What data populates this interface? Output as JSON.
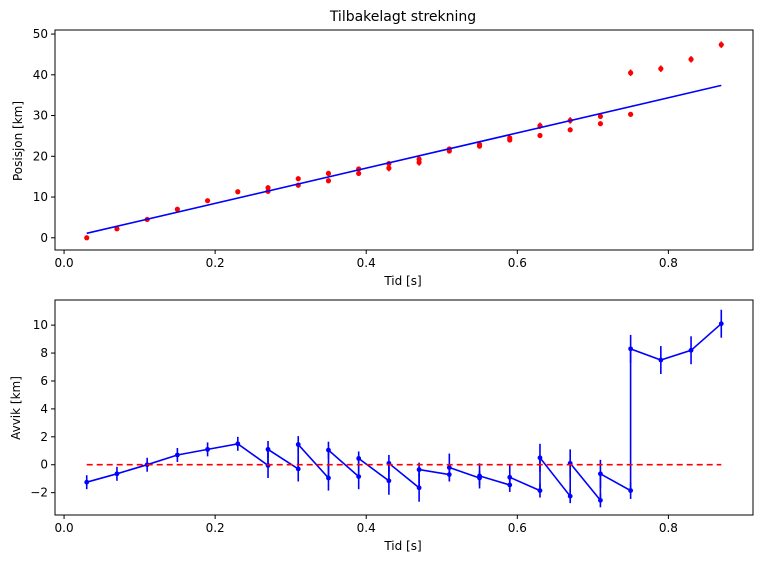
{
  "chart_data": [
    {
      "type": "scatter",
      "title": "Tilbakelagt strekning",
      "xlabel": "Tid [s]",
      "ylabel": "Posisjon [km]",
      "xlim": [
        -0.012,
        0.912
      ],
      "ylim": [
        -3.0,
        51.0
      ],
      "xticks": [
        0.0,
        0.2,
        0.4,
        0.6,
        0.8
      ],
      "xtick_labels": [
        "0.0",
        "0.2",
        "0.4",
        "0.6",
        "0.8"
      ],
      "yticks": [
        0,
        10,
        20,
        30,
        40,
        50
      ],
      "ytick_labels": [
        "0",
        "10",
        "20",
        "30",
        "40",
        "50"
      ],
      "grid": false,
      "series": [
        {
          "kind": "points",
          "color": "#ff0000",
          "points": [
            {
              "x": 0.03,
              "y": 0.0,
              "err": 0.4
            },
            {
              "x": 0.07,
              "y": 2.2,
              "err": 0.4
            },
            {
              "x": 0.11,
              "y": 4.5,
              "err": 0.4
            },
            {
              "x": 0.15,
              "y": 7.0,
              "err": 0.4
            },
            {
              "x": 0.19,
              "y": 9.1,
              "err": 0.4
            },
            {
              "x": 0.23,
              "y": 11.3,
              "err": 0.4
            },
            {
              "x": 0.27,
              "y": 11.4,
              "err": 0.6
            },
            {
              "x": 0.27,
              "y": 12.3,
              "err": 0.6
            },
            {
              "x": 0.31,
              "y": 12.9,
              "err": 0.6
            },
            {
              "x": 0.31,
              "y": 14.5,
              "err": 0.6
            },
            {
              "x": 0.35,
              "y": 14.0,
              "err": 0.6
            },
            {
              "x": 0.35,
              "y": 15.8,
              "err": 0.6
            },
            {
              "x": 0.39,
              "y": 15.8,
              "err": 0.6
            },
            {
              "x": 0.39,
              "y": 16.9,
              "err": 0.6
            },
            {
              "x": 0.43,
              "y": 17.1,
              "err": 0.8
            },
            {
              "x": 0.43,
              "y": 18.2,
              "err": 0.6
            },
            {
              "x": 0.47,
              "y": 18.5,
              "err": 0.8
            },
            {
              "x": 0.47,
              "y": 19.3,
              "err": 0.6
            },
            {
              "x": 0.51,
              "y": 21.3,
              "err": 0.6
            },
            {
              "x": 0.51,
              "y": 21.8,
              "err": 0.6
            },
            {
              "x": 0.55,
              "y": 22.5,
              "err": 0.6
            },
            {
              "x": 0.55,
              "y": 22.9,
              "err": 0.6
            },
            {
              "x": 0.59,
              "y": 24.0,
              "err": 0.6
            },
            {
              "x": 0.59,
              "y": 24.5,
              "err": 0.6
            },
            {
              "x": 0.63,
              "y": 25.1,
              "err": 0.6
            },
            {
              "x": 0.63,
              "y": 27.5,
              "err": 0.8
            },
            {
              "x": 0.67,
              "y": 26.5,
              "err": 0.6
            },
            {
              "x": 0.67,
              "y": 28.8,
              "err": 0.8
            },
            {
              "x": 0.71,
              "y": 28.0,
              "err": 0.6
            },
            {
              "x": 0.71,
              "y": 29.8,
              "err": 0.6
            },
            {
              "x": 0.75,
              "y": 30.3,
              "err": 0.6
            },
            {
              "x": 0.75,
              "y": 40.5,
              "err": 0.8
            },
            {
              "x": 0.79,
              "y": 41.5,
              "err": 0.8
            },
            {
              "x": 0.83,
              "y": 43.8,
              "err": 0.8
            },
            {
              "x": 0.87,
              "y": 47.4,
              "err": 0.8
            }
          ]
        },
        {
          "kind": "line",
          "color": "#0000ff",
          "x": [
            0.03,
            0.87
          ],
          "y": [
            1.1,
            37.4
          ]
        }
      ]
    },
    {
      "type": "line",
      "title": "",
      "xlabel": "Tid [s]",
      "ylabel": "Avvik [km]",
      "xlim": [
        -0.012,
        0.912
      ],
      "ylim": [
        -3.6,
        11.8
      ],
      "xticks": [
        0.0,
        0.2,
        0.4,
        0.6,
        0.8
      ],
      "xtick_labels": [
        "0.0",
        "0.2",
        "0.4",
        "0.6",
        "0.8"
      ],
      "yticks": [
        -2,
        0,
        2,
        4,
        6,
        8,
        10
      ],
      "ytick_labels": [
        "−2",
        "0",
        "2",
        "4",
        "6",
        "8",
        "10"
      ],
      "grid": false,
      "series": [
        {
          "kind": "errorline",
          "color": "#0000ff",
          "points": [
            {
              "x": 0.03,
              "y": -1.25,
              "err": 0.5
            },
            {
              "x": 0.07,
              "y": -0.65,
              "err": 0.5
            },
            {
              "x": 0.11,
              "y": 0.0,
              "err": 0.5
            },
            {
              "x": 0.15,
              "y": 0.7,
              "err": 0.5
            },
            {
              "x": 0.19,
              "y": 1.1,
              "err": 0.5
            },
            {
              "x": 0.23,
              "y": 1.5,
              "err": 0.5
            },
            {
              "x": 0.27,
              "y": -0.05,
              "err": 0.9
            },
            {
              "x": 0.27,
              "y": 1.1,
              "err": 0.6
            },
            {
              "x": 0.31,
              "y": -0.3,
              "err": 0.9
            },
            {
              "x": 0.31,
              "y": 1.45,
              "err": 0.6
            },
            {
              "x": 0.35,
              "y": -0.95,
              "err": 0.9
            },
            {
              "x": 0.35,
              "y": 1.05,
              "err": 0.6
            },
            {
              "x": 0.39,
              "y": -0.85,
              "err": 0.9
            },
            {
              "x": 0.39,
              "y": 0.45,
              "err": 0.5
            },
            {
              "x": 0.43,
              "y": -1.15,
              "err": 1.0
            },
            {
              "x": 0.43,
              "y": 0.1,
              "err": 0.6
            },
            {
              "x": 0.47,
              "y": -1.65,
              "err": 1.0
            },
            {
              "x": 0.47,
              "y": -0.35,
              "err": 0.5
            },
            {
              "x": 0.51,
              "y": -0.7,
              "err": 0.5
            },
            {
              "x": 0.51,
              "y": -0.2,
              "err": 1.0
            },
            {
              "x": 0.55,
              "y": -0.95,
              "err": 0.5
            },
            {
              "x": 0.55,
              "y": -0.8,
              "err": 0.9
            },
            {
              "x": 0.59,
              "y": -1.45,
              "err": 0.5
            },
            {
              "x": 0.59,
              "y": -0.9,
              "err": 0.9
            },
            {
              "x": 0.63,
              "y": -1.85,
              "err": 0.5
            },
            {
              "x": 0.63,
              "y": 0.5,
              "err": 1.0
            },
            {
              "x": 0.67,
              "y": -2.25,
              "err": 0.5
            },
            {
              "x": 0.67,
              "y": 0.1,
              "err": 1.0
            },
            {
              "x": 0.71,
              "y": -2.55,
              "err": 0.5
            },
            {
              "x": 0.71,
              "y": -0.65,
              "err": 1.0
            },
            {
              "x": 0.75,
              "y": -1.85,
              "err": 0.6
            },
            {
              "x": 0.75,
              "y": 8.3,
              "err": 1.0
            },
            {
              "x": 0.79,
              "y": 7.5,
              "err": 1.0
            },
            {
              "x": 0.83,
              "y": 8.2,
              "err": 1.0
            },
            {
              "x": 0.87,
              "y": 10.1,
              "err": 1.0
            }
          ]
        },
        {
          "kind": "dashed-line",
          "color": "#ff0000",
          "x": [
            0.03,
            0.87
          ],
          "y": [
            0.0,
            0.0
          ]
        }
      ]
    }
  ]
}
